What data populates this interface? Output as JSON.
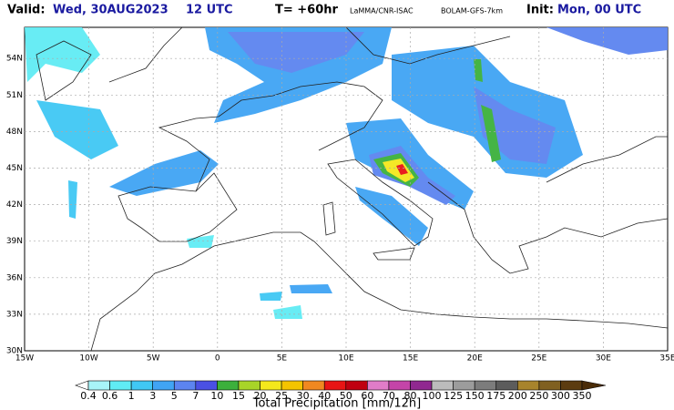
{
  "header": {
    "valid_label": "Valid:",
    "valid_date": "Wed, 30AUG2023",
    "valid_time": "12 UTC",
    "lead_time": "T= +60hr",
    "institution": "LaMMA/CNR-ISAC",
    "model": "BOLAM-GFS-7km",
    "init_label": "Init:",
    "init_time": "Mon, 00 UTC"
  },
  "map": {
    "lat_labels": [
      "30N",
      "33N",
      "36N",
      "39N",
      "42N",
      "45N",
      "48N",
      "51N",
      "54N"
    ],
    "lon_labels": [
      "15W",
      "10W",
      "5W",
      "0",
      "5E",
      "10E",
      "15E",
      "20E",
      "25E",
      "30E",
      "35E"
    ]
  },
  "colorbar": {
    "title": "Total Precipitation [mm/12h]",
    "levels": [
      0.4,
      0.6,
      1,
      3,
      5,
      7,
      10,
      15,
      20,
      25,
      30,
      40,
      50,
      60,
      70,
      80,
      100,
      125,
      150,
      175,
      200,
      250,
      300,
      350
    ],
    "colors": [
      "#a8f4f8",
      "#60ecf4",
      "#40c8f4",
      "#40a4f4",
      "#5c84f0",
      "#4a50e4",
      "#3cb03c",
      "#a8d428",
      "#f4e81c",
      "#f4c400",
      "#f08820",
      "#e81414",
      "#c00010",
      "#e07cc8",
      "#c444a8",
      "#902890",
      "#bcbcbc",
      "#9c9c9c",
      "#7c7c7c",
      "#5c5c5c",
      "#a8842c",
      "#806020",
      "#5c3c10"
    ]
  }
}
